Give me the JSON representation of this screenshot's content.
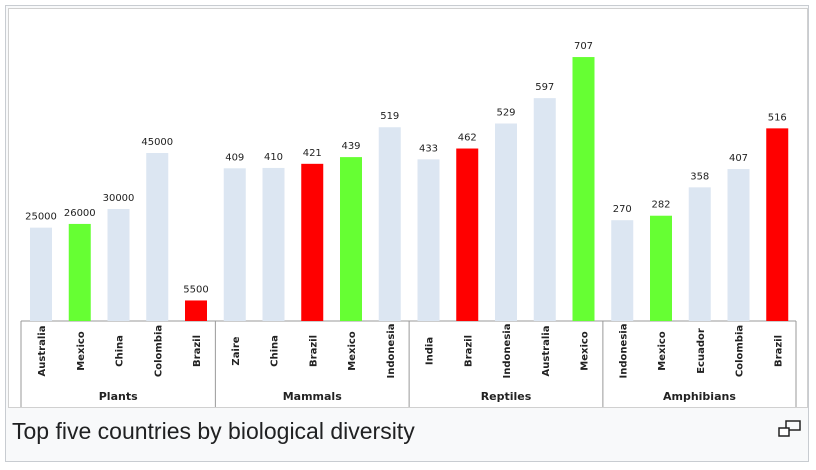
{
  "chart_data": {
    "type": "bar",
    "caption": "Top five countries by biological diversity",
    "groups": [
      {
        "label": "Plants",
        "categories": [
          "Australia",
          "Mexico",
          "China",
          "Colombia",
          "Brazil"
        ],
        "values": [
          25000,
          26000,
          30000,
          45000,
          5500
        ],
        "colors": [
          "#dce6f2",
          "#66ff33",
          "#dce6f2",
          "#dce6f2",
          "#ff0000"
        ],
        "ylim": [
          0,
          75000
        ]
      },
      {
        "label": "Mammals",
        "categories": [
          "Zaire",
          "China",
          "Brazil",
          "Mexico",
          "Indonesia"
        ],
        "values": [
          409,
          410,
          421,
          439,
          519
        ],
        "colors": [
          "#dce6f2",
          "#dce6f2",
          "#ff0000",
          "#66ff33",
          "#dce6f2"
        ],
        "ylim": [
          0,
          750
        ]
      },
      {
        "label": "Reptiles",
        "categories": [
          "India",
          "Brazil",
          "Indonesia",
          "Australia",
          "Mexico"
        ],
        "values": [
          433,
          462,
          529,
          597,
          707
        ],
        "colors": [
          "#dce6f2",
          "#ff0000",
          "#dce6f2",
          "#dce6f2",
          "#66ff33"
        ],
        "ylim": [
          0,
          750
        ]
      },
      {
        "label": "Amphibians",
        "categories": [
          "Indonesia",
          "Mexico",
          "Ecuador",
          "Colombia",
          "Brazil"
        ],
        "values": [
          270,
          282,
          358,
          407,
          516
        ],
        "colors": [
          "#dce6f2",
          "#66ff33",
          "#dce6f2",
          "#dce6f2",
          "#ff0000"
        ],
        "ylim": [
          0,
          750
        ]
      }
    ]
  }
}
